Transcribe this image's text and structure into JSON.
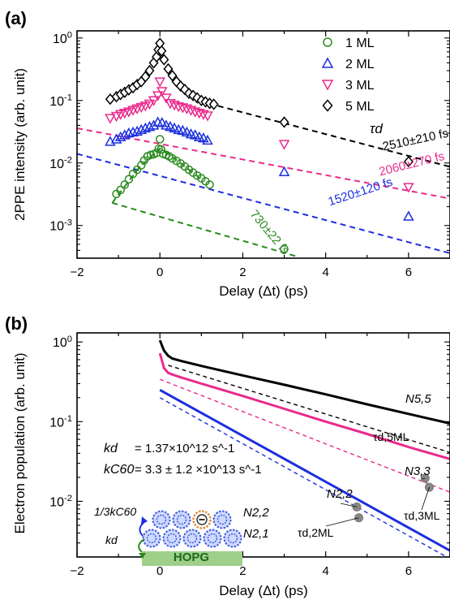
{
  "chart_data": [
    {
      "panel_label": "(a)",
      "type": "scatter",
      "ylabel": "2PPE intensity (arb. unit)",
      "xlabel": "Delay (Δt) (ps)",
      "xlim": [
        -2,
        7
      ],
      "ylim": [
        0.0003,
        1.3
      ],
      "yscale": "log",
      "xticks": [
        "−2",
        "0",
        "2",
        "4",
        "6"
      ],
      "yticks": [
        "10^0",
        "10^-1",
        "10^-2",
        "10^-3"
      ],
      "legend_position": "top-right",
      "tau_header": "τd",
      "series": [
        {
          "name": "1 ML",
          "color": "#2a8a1f",
          "marker": "circle",
          "x": [
            -1.05,
            -0.95,
            -0.85,
            -0.75,
            -0.65,
            -0.55,
            -0.45,
            -0.38,
            -0.3,
            -0.22,
            -0.15,
            -0.08,
            -0.03,
            0.0,
            0.03,
            0.08,
            0.15,
            0.22,
            0.3,
            0.4,
            0.5,
            0.6,
            0.7,
            0.8,
            0.9,
            1.0,
            1.1,
            1.2,
            3.0
          ],
          "y": [
            0.0032,
            0.0037,
            0.0045,
            0.0055,
            0.0067,
            0.0078,
            0.0092,
            0.011,
            0.0128,
            0.0135,
            0.0138,
            0.0145,
            0.0168,
            0.024,
            0.0165,
            0.014,
            0.0135,
            0.0128,
            0.0118,
            0.0108,
            0.0098,
            0.0088,
            0.0078,
            0.007,
            0.0063,
            0.0057,
            0.0051,
            0.0045,
            0.00042
          ],
          "fit_label": "730±22 fs",
          "fit": {
            "x0": -1.15,
            "x1": 3.3,
            "y0": 0.0023,
            "y1": 0.00032
          }
        },
        {
          "name": "2 ML",
          "color": "#1c2ee0",
          "marker": "triangle-up",
          "x": [
            -1.2,
            -1.05,
            -0.95,
            -0.85,
            -0.75,
            -0.65,
            -0.55,
            -0.45,
            -0.35,
            -0.25,
            -0.15,
            -0.05,
            0.05,
            0.15,
            0.25,
            0.35,
            0.45,
            0.55,
            0.65,
            0.75,
            0.85,
            0.95,
            1.05,
            1.15,
            3.0,
            6.0
          ],
          "y": [
            0.022,
            0.024,
            0.026,
            0.028,
            0.03,
            0.031,
            0.032,
            0.034,
            0.036,
            0.038,
            0.04,
            0.045,
            0.044,
            0.04,
            0.038,
            0.036,
            0.034,
            0.033,
            0.031,
            0.029,
            0.028,
            0.026,
            0.025,
            0.023,
            0.0072,
            0.0014
          ],
          "fit_label": "1520±120 fs",
          "fit": {
            "x0": -2.0,
            "x1": 7.0,
            "y0": 0.014,
            "y1": 0.00036
          }
        },
        {
          "name": "3 ML",
          "color": "#ea2a8c",
          "marker": "triangle-down",
          "x": [
            -1.2,
            -1.05,
            -0.95,
            -0.85,
            -0.75,
            -0.65,
            -0.55,
            -0.45,
            -0.35,
            -0.25,
            -0.15,
            -0.05,
            0.0,
            0.05,
            0.15,
            0.25,
            0.35,
            0.45,
            0.55,
            0.65,
            0.75,
            0.85,
            0.95,
            1.05,
            1.15,
            3.0,
            6.0
          ],
          "y": [
            0.052,
            0.056,
            0.06,
            0.063,
            0.066,
            0.07,
            0.074,
            0.078,
            0.082,
            0.088,
            0.1,
            0.12,
            0.2,
            0.14,
            0.11,
            0.09,
            0.085,
            0.08,
            0.077,
            0.074,
            0.07,
            0.066,
            0.063,
            0.06,
            0.057,
            0.02,
            0.0041
          ],
          "fit_label": "2060±270 fs",
          "fit": {
            "x0": -2.0,
            "x1": 7.0,
            "y0": 0.036,
            "y1": 0.0027
          }
        },
        {
          "name": "5 ML",
          "color": "#000000",
          "marker": "diamond",
          "x": [
            -1.2,
            -1.05,
            -0.95,
            -0.85,
            -0.75,
            -0.65,
            -0.55,
            -0.45,
            -0.35,
            -0.25,
            -0.15,
            -0.08,
            -0.04,
            0.0,
            0.04,
            0.1,
            0.2,
            0.3,
            0.4,
            0.5,
            0.6,
            0.7,
            0.8,
            0.9,
            1.0,
            1.1,
            1.2,
            1.3,
            3.0,
            6.0
          ],
          "y": [
            0.105,
            0.115,
            0.125,
            0.135,
            0.148,
            0.16,
            0.18,
            0.2,
            0.24,
            0.3,
            0.4,
            0.5,
            0.65,
            0.82,
            0.62,
            0.45,
            0.32,
            0.25,
            0.2,
            0.17,
            0.15,
            0.13,
            0.12,
            0.11,
            0.1,
            0.095,
            0.09,
            0.087,
            0.045,
            0.0105
          ],
          "fit_label": "2510±210 fs",
          "fit": {
            "x0": 1.4,
            "x1": 7.0,
            "y0": 0.082,
            "y1": 0.0087
          }
        }
      ]
    },
    {
      "panel_label": "(b)",
      "type": "line",
      "ylabel": "Electron population (arb. unit)",
      "xlabel": "Delay (Δt) (ps)",
      "xlim": [
        -2,
        7
      ],
      "ylim": [
        0.002,
        1.3
      ],
      "yscale": "log",
      "xticks": [
        "−2",
        "0",
        "2",
        "4",
        "6"
      ],
      "yticks": [
        "10^0",
        "10^-1",
        "10^-2"
      ],
      "series": [
        {
          "name": "N5,5",
          "color": "#000000",
          "style": "solid",
          "x": [
            0.0,
            0.05,
            0.1,
            0.2,
            0.3,
            0.5,
            1,
            2,
            3,
            4,
            5,
            6,
            7
          ],
          "y": [
            1.05,
            0.9,
            0.78,
            0.67,
            0.62,
            0.58,
            0.5,
            0.38,
            0.29,
            0.22,
            0.165,
            0.125,
            0.095
          ]
        },
        {
          "name": "τd,5ML",
          "color": "#000000",
          "style": "dashed",
          "x": [
            0.2,
            7.0
          ],
          "y": [
            0.51,
            0.041
          ]
        },
        {
          "name": "N3,3",
          "color": "#ea2a8c",
          "style": "solid",
          "x": [
            0.0,
            0.05,
            0.1,
            0.2,
            0.3,
            0.5,
            1,
            2,
            3,
            4,
            5,
            6,
            7
          ],
          "y": [
            0.72,
            0.58,
            0.47,
            0.41,
            0.39,
            0.36,
            0.3,
            0.21,
            0.145,
            0.1,
            0.07,
            0.048,
            0.034
          ]
        },
        {
          "name": "τd,3ML",
          "color": "#ea2a8c",
          "style": "dashed",
          "x": [
            0.0,
            7.0
          ],
          "y": [
            0.34,
            0.013
          ]
        },
        {
          "name": "N2,2",
          "color": "#1c2ee0",
          "style": "solid",
          "x": [
            0.0,
            7.0
          ],
          "y": [
            0.25,
            0.0024
          ]
        },
        {
          "name": "τd,2ML",
          "color": "#1c2ee0",
          "style": "dashed",
          "x": [
            0.0,
            7.0
          ],
          "y": [
            0.2,
            0.0019
          ]
        }
      ],
      "markers": [
        {
          "label": "N2,2 marker",
          "x": 4.75,
          "y": 0.0085
        },
        {
          "label": "τd,2ML marker",
          "x": 4.8,
          "y": 0.0062
        },
        {
          "label": "N3,3 marker",
          "x": 6.4,
          "y": 0.0195
        },
        {
          "label": "τd,3ML marker",
          "x": 6.5,
          "y": 0.015
        }
      ],
      "curve_labels": {
        "n55": "N5,5",
        "tau5": "τd,5ML",
        "n33": "N3,3",
        "tau3": "τd,3ML",
        "n22": "N2,2",
        "tau2": "τd,2ML"
      },
      "annotations": {
        "kd_symbol": "kd",
        "kd_value": "= 1.37×10^12 s^-1",
        "kc60_symbol": "kC60",
        "kc60_value": "= 3.3 ± 1.2 ×10^13 s^-1",
        "third_kc60": "1/3kC60",
        "kd_arrow": "kd",
        "substrate": "HOPG",
        "layer2": "N2,2",
        "layer1": "N2,1"
      }
    }
  ]
}
